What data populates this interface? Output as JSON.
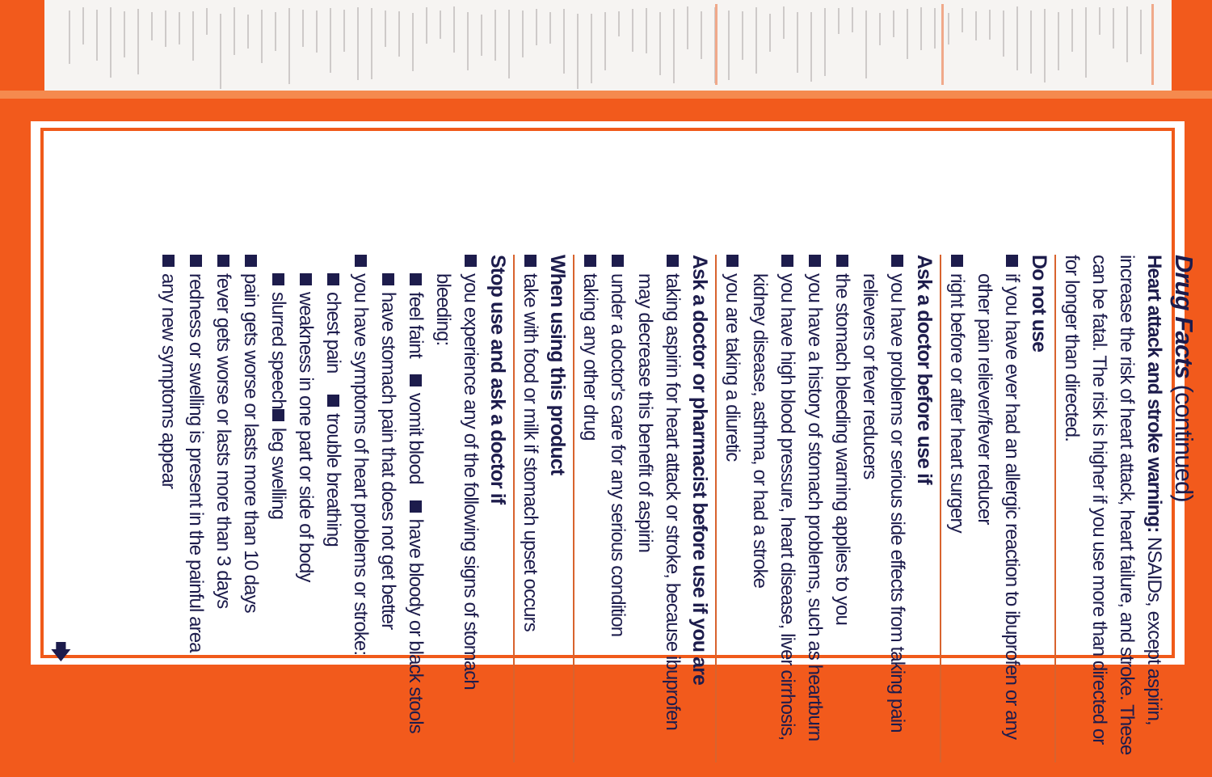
{
  "colors": {
    "brand_orange": "#f25a1c",
    "text_navy": "#1d1c4c",
    "divider": "#d8632e"
  },
  "title": {
    "main": "Drug Facts",
    "suffix": " (continued)"
  },
  "heart_warning": {
    "label": "Heart attack and stroke warning:",
    "text": " NSAIDs, except aspirin, increase the risk of heart attack, heart failure, and stroke. These can be fatal. The risk is higher if you use more than directed or for longer than directed."
  },
  "do_not_use": {
    "heading": "Do not use",
    "items": [
      "if you have ever had an allergic reaction to ibuprofen or any other pain reliever/fever reducer",
      "right before or after heart surgery"
    ]
  },
  "ask_doctor": {
    "heading": "Ask a doctor before use if",
    "items": [
      "you have problems or serious side effects from taking pain relievers or fever reducers",
      "the stomach bleeding warning applies to you",
      "you have a history of stomach problems, such as heartburn",
      "you have high blood pressure, heart disease, liver cirrhosis, kidney disease, asthma, or had a stroke",
      "you are taking a diuretic"
    ]
  },
  "ask_pharmacist": {
    "heading": "Ask a doctor or pharmacist before use if you are",
    "items": [
      "taking aspirin for heart attack or stroke, because ibuprofen may decrease this benefit of aspirin",
      "under a doctor's care for any serious condition",
      "taking any other drug"
    ]
  },
  "when_using": {
    "heading": "When using this product",
    "items": [
      "take with food or milk if stomach upset occurs"
    ]
  },
  "stop_use": {
    "heading": "Stop use and ask a doctor if",
    "bleeding_intro": "you experience any of the following signs of stomach bleeding:",
    "bleeding_signs": [
      "feel faint",
      "vomit blood",
      "have bloody or black stools",
      "have stomach pain that does not get better"
    ],
    "heart_intro": "you have symptoms of heart problems or stroke:",
    "heart_signs": [
      "chest pain",
      "trouble breathing",
      "weakness in one part or side of body",
      "slurred speech",
      "leg swelling"
    ],
    "items": [
      "pain gets worse or lasts more than 10 days",
      "fever gets worse or lasts more than 3 days",
      "redness or swelling is present in the painful area",
      "any new symptoms appear"
    ]
  },
  "continue_icon": "arrow-down-icon"
}
